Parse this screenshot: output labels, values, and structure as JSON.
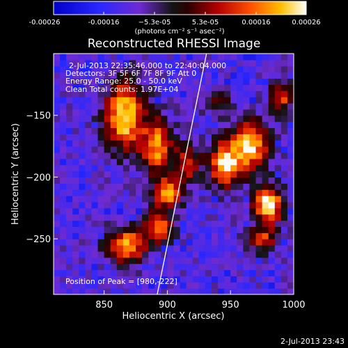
{
  "chart_data": {
    "type": "heatmap",
    "title": "Reconstructed RHESSI Image",
    "xlabel": "Heliocentric X (arcsec)",
    "ylabel": "Heliocentric Y (arcsec)",
    "xlim": [
      810,
      1000
    ],
    "ylim": [
      -295,
      -100
    ],
    "x_ticks": [
      850,
      900,
      950,
      1000
    ],
    "x_tick_labels": [
      "850",
      "900",
      "950",
      "1000"
    ],
    "y_ticks": [
      -150,
      -200,
      -250
    ],
    "y_tick_labels": [
      "−150",
      "−200",
      "−250"
    ],
    "colorbar": {
      "range": [
        -0.00026,
        0.00026
      ],
      "tick_labels": [
        "-0.00026",
        "-0.00016",
        "−5.3e-05",
        "5.3e-05",
        "0.00016",
        "0.00026"
      ],
      "units_label": "(photons cm⁻² s⁻¹ asec⁻²)"
    },
    "annotations": [
      "2-Jul-2013 22:35:46.000 to 22:40:04.000",
      "Detectors: 3F 5F 6F 7F 8F 9F Att 0",
      "Energy Range: 25.0 - 50.0 keV",
      "Clean    Total counts: 1.97E+04"
    ],
    "peak_label": "Position of Peak = [980,-222]",
    "peak_position": [
      980,
      -222
    ],
    "limb_line": {
      "from": [
        892,
        -295
      ],
      "to": [
        931,
        -100
      ]
    },
    "bright_sources": [
      {
        "x": 866,
        "y": -150,
        "intensity": 0.9,
        "sx": 15,
        "sy": 28
      },
      {
        "x": 892,
        "y": -175,
        "intensity": 0.75,
        "sx": 12,
        "sy": 22
      },
      {
        "x": 900,
        "y": -213,
        "intensity": 0.75,
        "sx": 11,
        "sy": 12
      },
      {
        "x": 893,
        "y": -240,
        "intensity": 0.7,
        "sx": 11,
        "sy": 12
      },
      {
        "x": 868,
        "y": -255,
        "intensity": 0.8,
        "sx": 15,
        "sy": 14
      },
      {
        "x": 916,
        "y": -188,
        "intensity": 0.55,
        "sx": 10,
        "sy": 15
      },
      {
        "x": 945,
        "y": -190,
        "intensity": 0.8,
        "sx": 12,
        "sy": 18
      },
      {
        "x": 965,
        "y": -175,
        "intensity": 0.85,
        "sx": 15,
        "sy": 20
      },
      {
        "x": 980,
        "y": -222,
        "intensity": 1.0,
        "sx": 11,
        "sy": 14
      },
      {
        "x": 975,
        "y": -250,
        "intensity": 0.55,
        "sx": 12,
        "sy": 10
      },
      {
        "x": 990,
        "y": -135,
        "intensity": 0.6,
        "sx": 9,
        "sy": 12
      },
      {
        "x": 940,
        "y": -140,
        "intensity": 0.35,
        "sx": 10,
        "sy": 10
      }
    ],
    "footer_date": "2-Jul-2013 23:43"
  }
}
